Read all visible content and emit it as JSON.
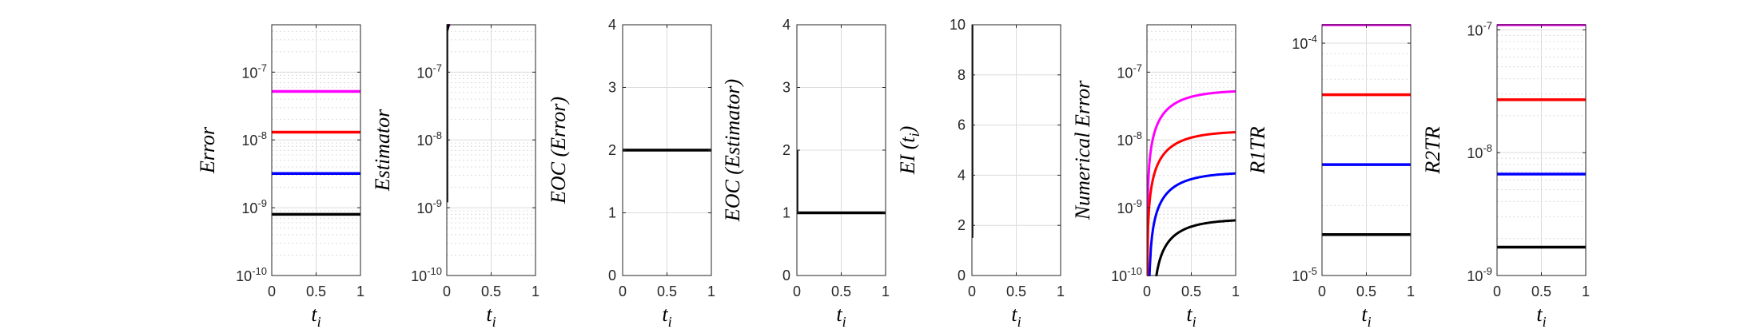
{
  "colors": {
    "magenta": "#ff00ff",
    "red": "#ff0000",
    "blue": "#0000ff",
    "black": "#000000",
    "grid": "#dcdcdc",
    "axes": "#262626"
  },
  "x_axis": {
    "label_base": "t",
    "label_sub": "i",
    "ticks": [
      "0",
      "0.5",
      "1"
    ],
    "lim": [
      0,
      1
    ]
  },
  "chart_data": [
    {
      "type": "line",
      "ylabel": "Error",
      "yscale": "log",
      "ylim": [
        1e-10,
        5e-07
      ],
      "yticks": [
        1e-10,
        1e-09,
        1e-08,
        1e-07
      ],
      "grid": true,
      "series": [
        {
          "color": "magenta",
          "x": [
            0,
            1
          ],
          "y": [
            5.2e-08,
            5.2e-08
          ]
        },
        {
          "color": "red",
          "x": [
            0,
            1
          ],
          "y": [
            1.3e-08,
            1.3e-08
          ]
        },
        {
          "color": "blue",
          "x": [
            0,
            1
          ],
          "y": [
            3.2e-09,
            3.2e-09
          ]
        },
        {
          "color": "black",
          "x": [
            0,
            1
          ],
          "y": [
            8e-10,
            8e-10
          ]
        }
      ]
    },
    {
      "type": "line",
      "ylabel": "Estimator",
      "yscale": "log",
      "ylim": [
        1e-10,
        5e-07
      ],
      "yticks": [
        1e-10,
        1e-09,
        1e-08,
        1e-07
      ],
      "grid": true,
      "series": [
        {
          "color": "magenta",
          "x": [
            0,
            0.04
          ],
          "y": [
            5e-07,
            5e-07
          ]
        },
        {
          "color": "black",
          "x": [
            0,
            0,
            0.02,
            0.03
          ],
          "y": [
            1.2e-09,
            4e-07,
            5e-07,
            5e-07
          ]
        }
      ]
    },
    {
      "type": "line",
      "ylabel": "EOC (Error)",
      "yscale": "linear",
      "ylim": [
        0,
        4
      ],
      "yticks": [
        0,
        1,
        2,
        3,
        4
      ],
      "grid": true,
      "series": [
        {
          "color": "black",
          "x": [
            0,
            1
          ],
          "y": [
            2,
            2
          ]
        }
      ]
    },
    {
      "type": "line",
      "ylabel": "EOC (Estimator)",
      "yscale": "linear",
      "ylim": [
        0,
        4
      ],
      "yticks": [
        0,
        1,
        2,
        3,
        4
      ],
      "grid": true,
      "series": [
        {
          "color": "black",
          "x": [
            0,
            0,
            1
          ],
          "y": [
            2,
            1,
            1
          ]
        }
      ]
    },
    {
      "type": "line",
      "ylabel": "EI (t_i)",
      "yscale": "linear",
      "ylim": [
        0,
        10
      ],
      "yticks": [
        0,
        2,
        4,
        6,
        8,
        10
      ],
      "grid": true,
      "series": [
        {
          "color": "black",
          "x": [
            0,
            0
          ],
          "y": [
            1.5,
            10
          ]
        }
      ]
    },
    {
      "type": "line",
      "ylabel": "Numerical Error",
      "yscale": "log",
      "ylim": [
        1e-10,
        5e-07
      ],
      "yticks": [
        1e-10,
        1e-09,
        1e-08,
        1e-07
      ],
      "grid": true,
      "curve": "rising",
      "series": [
        {
          "color": "magenta",
          "final": 5.2e-08,
          "x0": 0.0
        },
        {
          "color": "red",
          "final": 1.3e-08,
          "x0": 0.0
        },
        {
          "color": "blue",
          "final": 3.2e-09,
          "x0": 0.02
        },
        {
          "color": "black",
          "final": 6.5e-10,
          "x0": 0.06
        }
      ]
    },
    {
      "type": "line",
      "ylabel": "R1TR",
      "yscale": "log",
      "ylim": [
        1e-05,
        0.00012
      ],
      "yticks": [
        1e-05,
        0.0001
      ],
      "grid": true,
      "series": [
        {
          "color": "magenta",
          "x": [
            0,
            1
          ],
          "y": [
            0.00012,
            0.00012
          ]
        },
        {
          "color": "red",
          "x": [
            0,
            1
          ],
          "y": [
            6e-05,
            6e-05
          ]
        },
        {
          "color": "blue",
          "x": [
            0,
            1
          ],
          "y": [
            3e-05,
            3e-05
          ]
        },
        {
          "color": "black",
          "x": [
            0,
            1
          ],
          "y": [
            1.5e-05,
            1.5e-05
          ]
        }
      ]
    },
    {
      "type": "line",
      "ylabel": "R2TR",
      "yscale": "log",
      "ylim": [
        1e-09,
        1.1e-07
      ],
      "yticks": [
        1e-09,
        1e-08,
        1e-07
      ],
      "grid": true,
      "series": [
        {
          "color": "magenta",
          "x": [
            0,
            1
          ],
          "y": [
            1.1e-07,
            1.1e-07
          ]
        },
        {
          "color": "red",
          "x": [
            0,
            1
          ],
          "y": [
            2.7e-08,
            2.7e-08
          ]
        },
        {
          "color": "blue",
          "x": [
            0,
            1
          ],
          "y": [
            6.7e-09,
            6.7e-09
          ]
        },
        {
          "color": "black",
          "x": [
            0,
            1
          ],
          "y": [
            1.7e-09,
            1.7e-09
          ]
        }
      ]
    }
  ]
}
